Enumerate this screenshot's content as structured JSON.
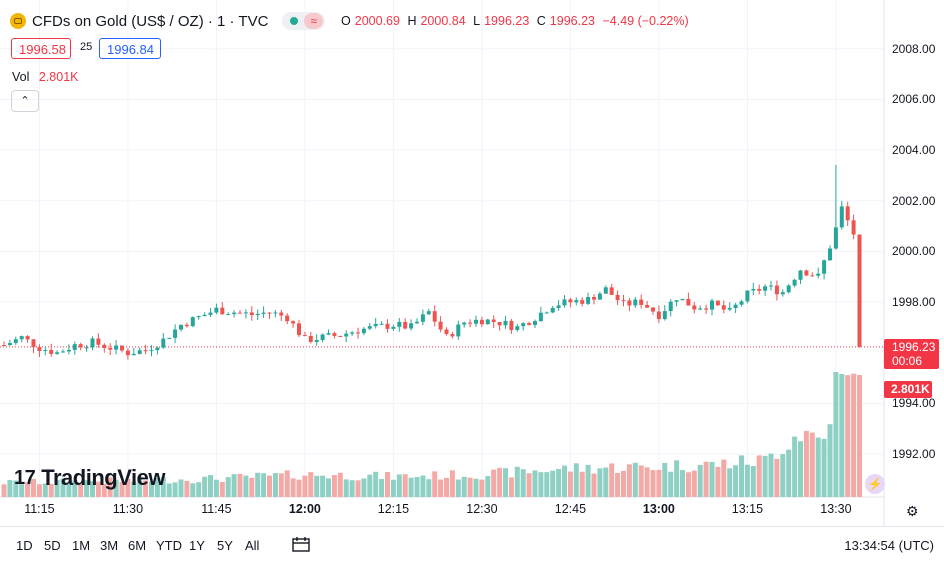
{
  "header": {
    "title": "CFDs on Gold (US$ / OZ) · 1 · TVC",
    "open_label": "O",
    "open": "2000.69",
    "high_label": "H",
    "high": "2000.84",
    "low_label": "L",
    "low": "1996.23",
    "close_label": "C",
    "close": "1996.23",
    "change": "−4.49 (−0.22%)",
    "wave_symbol": "≈"
  },
  "quote": {
    "sell": "1996.58",
    "spread": "25",
    "buy": "1996.84"
  },
  "volume": {
    "label": "Vol",
    "value": "2.801K"
  },
  "collapse_symbol": "⌃",
  "brand": "TradingView",
  "current_price_tag": {
    "price": "1996.23",
    "countdown": "00:06"
  },
  "volume_tag": "2.801K",
  "time_axis": [
    "11:15",
    "11:30",
    "11:45",
    "12:00",
    "12:15",
    "12:30",
    "12:45",
    "13:00",
    "13:15",
    "13:30"
  ],
  "time_axis_bold": [
    "12:00",
    "13:00"
  ],
  "price_axis": [
    "2008.00",
    "2006.00",
    "2004.00",
    "2002.00",
    "2000.00",
    "1998.00",
    "1994.00",
    "1992.00"
  ],
  "bottom_bar": {
    "ranges": [
      "1D",
      "5D",
      "1M",
      "3M",
      "6M",
      "YTD",
      "1Y",
      "5Y",
      "All"
    ],
    "clock": "13:34:54 (UTC)"
  },
  "colors": {
    "up": "#26a69a",
    "down": "#ef5350",
    "vol_up": "#8fd0c4",
    "vol_down": "#f3a9a6",
    "accent": "#2962ff"
  },
  "chart_data": {
    "type": "candlestick",
    "timeframe": "1 minute",
    "x_range": [
      "11:09",
      "13:34"
    ],
    "ylim": [
      1991,
      2009
    ],
    "grid": true,
    "current_price": 1996.23,
    "price_path": [
      {
        "t": "11:09",
        "p": 1996.3
      },
      {
        "t": "11:12",
        "p": 1996.6
      },
      {
        "t": "11:15",
        "p": 1996.2
      },
      {
        "t": "11:18",
        "p": 1996.0
      },
      {
        "t": "11:21",
        "p": 1996.3
      },
      {
        "t": "11:24",
        "p": 1996.4
      },
      {
        "t": "11:27",
        "p": 1996.2
      },
      {
        "t": "11:30",
        "p": 1996.0
      },
      {
        "t": "11:33",
        "p": 1996.1
      },
      {
        "t": "11:36",
        "p": 1996.5
      },
      {
        "t": "11:39",
        "p": 1997.1
      },
      {
        "t": "11:42",
        "p": 1997.4
      },
      {
        "t": "11:45",
        "p": 1997.7
      },
      {
        "t": "11:48",
        "p": 1997.6
      },
      {
        "t": "11:51",
        "p": 1997.5
      },
      {
        "t": "11:54",
        "p": 1997.6
      },
      {
        "t": "11:57",
        "p": 1997.4
      },
      {
        "t": "12:00",
        "p": 1996.5
      },
      {
        "t": "12:03",
        "p": 1996.6
      },
      {
        "t": "12:06",
        "p": 1996.7
      },
      {
        "t": "12:09",
        "p": 1996.9
      },
      {
        "t": "12:12",
        "p": 1997.0
      },
      {
        "t": "12:15",
        "p": 1997.1
      },
      {
        "t": "12:18",
        "p": 1997.0
      },
      {
        "t": "12:21",
        "p": 1997.6
      },
      {
        "t": "12:24",
        "p": 1996.6
      },
      {
        "t": "12:27",
        "p": 1997.2
      },
      {
        "t": "12:30",
        "p": 1997.3
      },
      {
        "t": "12:33",
        "p": 1997.2
      },
      {
        "t": "12:36",
        "p": 1997.0
      },
      {
        "t": "12:39",
        "p": 1997.4
      },
      {
        "t": "12:42",
        "p": 1997.9
      },
      {
        "t": "12:45",
        "p": 1998.0
      },
      {
        "t": "12:48",
        "p": 1998.1
      },
      {
        "t": "12:51",
        "p": 1998.5
      },
      {
        "t": "12:54",
        "p": 1997.9
      },
      {
        "t": "12:57",
        "p": 1998.0
      },
      {
        "t": "13:00",
        "p": 1997.5
      },
      {
        "t": "13:03",
        "p": 1998.2
      },
      {
        "t": "13:06",
        "p": 1997.8
      },
      {
        "t": "13:09",
        "p": 1997.9
      },
      {
        "t": "13:12",
        "p": 1997.6
      },
      {
        "t": "13:15",
        "p": 1998.3
      },
      {
        "t": "13:18",
        "p": 1998.6
      },
      {
        "t": "13:21",
        "p": 1998.4
      },
      {
        "t": "13:24",
        "p": 1999.3
      },
      {
        "t": "13:27",
        "p": 1999.0
      },
      {
        "t": "13:29",
        "p": 2000.2
      },
      {
        "t": "13:30",
        "p": 2000.9
      },
      {
        "t": "13:31",
        "p": 2001.7
      },
      {
        "t": "13:32",
        "p": 2001.2
      },
      {
        "t": "13:33",
        "p": 2000.7
      },
      {
        "t": "13:34",
        "p": 1996.23
      }
    ],
    "volume_path": [
      {
        "t": "11:09",
        "v": 0.35
      },
      {
        "t": "11:30",
        "v": 0.4
      },
      {
        "t": "11:45",
        "v": 0.45
      },
      {
        "t": "12:00",
        "v": 0.55
      },
      {
        "t": "12:15",
        "v": 0.5
      },
      {
        "t": "12:30",
        "v": 0.55
      },
      {
        "t": "12:45",
        "v": 0.7
      },
      {
        "t": "13:00",
        "v": 0.75
      },
      {
        "t": "13:10",
        "v": 0.8
      },
      {
        "t": "13:18",
        "v": 0.9
      },
      {
        "t": "13:24",
        "v": 1.6
      },
      {
        "t": "13:28",
        "v": 1.4
      },
      {
        "t": "13:30",
        "v": 2.9
      },
      {
        "t": "13:32",
        "v": 2.7
      },
      {
        "t": "13:34",
        "v": 2.801
      }
    ]
  }
}
